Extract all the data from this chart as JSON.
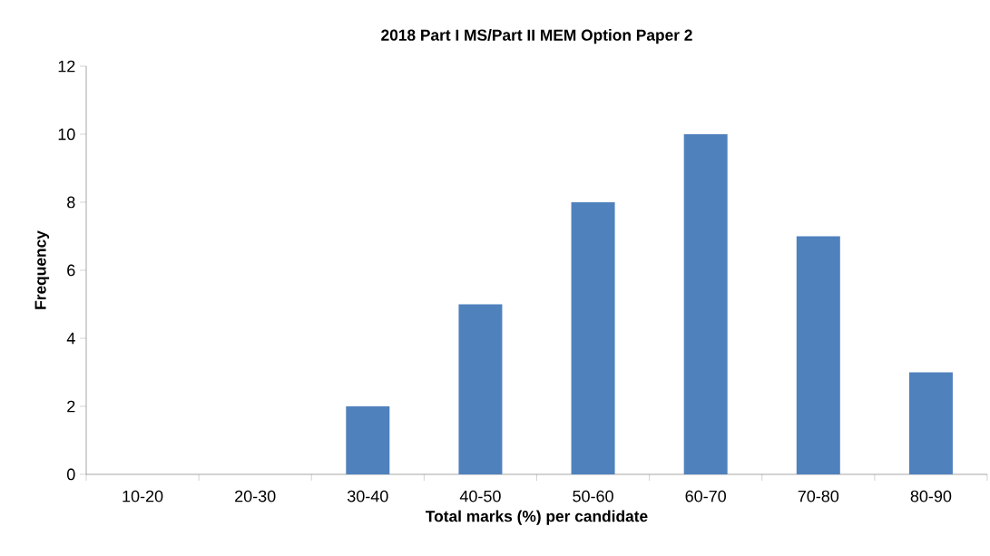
{
  "chart_data": {
    "type": "bar",
    "title": "2018 Part I  MS/Part II MEM Option Paper 2",
    "xlabel": "Total marks (%) per candidate",
    "ylabel": "Frequency",
    "categories": [
      "10-20",
      "20-30",
      "30-40",
      "40-50",
      "50-60",
      "60-70",
      "70-80",
      "80-90"
    ],
    "values": [
      0,
      0,
      2,
      5,
      8,
      10,
      7,
      3
    ],
    "color": "#4f81bd",
    "ylim": [
      0,
      12
    ],
    "yticks": [
      0,
      2,
      4,
      6,
      8,
      10,
      12
    ],
    "grid": false
  }
}
